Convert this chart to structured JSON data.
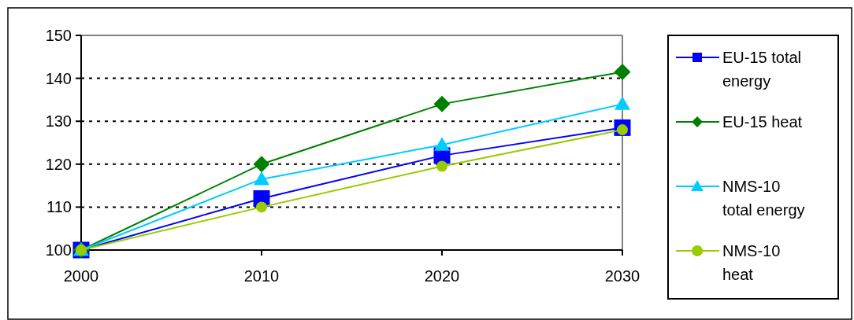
{
  "chart_data": {
    "type": "line",
    "x": [
      2000,
      2010,
      2020,
      2030
    ],
    "xlim": [
      2000,
      2030
    ],
    "xticks": [
      2000,
      2010,
      2020,
      2030
    ],
    "ylim": [
      100,
      150
    ],
    "yticks": [
      100,
      110,
      120,
      130,
      140,
      150
    ],
    "grid": "y",
    "legend": "right",
    "line_style": "solid",
    "series": [
      {
        "name": "EU-15 total energy",
        "color": "#0000ff",
        "marker": "square",
        "values": [
          100,
          112,
          122,
          128.5
        ]
      },
      {
        "name": "EU-15 heat",
        "color": "#008000",
        "marker": "diamond",
        "values": [
          100,
          120,
          134,
          141.5
        ]
      },
      {
        "name": "NMS-10 total energy",
        "color": "#00ccff",
        "marker": "triangle",
        "values": [
          100,
          116.5,
          124.5,
          134
        ]
      },
      {
        "name": "NMS-10 heat",
        "color": "#99cc00",
        "marker": "circle",
        "values": [
          100,
          110,
          119.5,
          128
        ]
      }
    ]
  }
}
